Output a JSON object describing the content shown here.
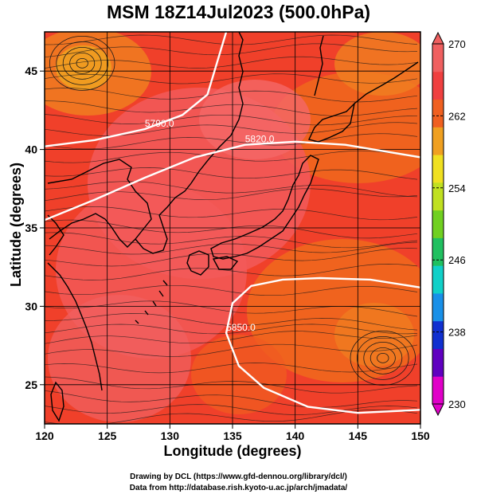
{
  "title": "MSM 18Z14Jul2023 (500.0hPa)",
  "xlabel": "Longitude (degrees)",
  "ylabel": "Latitude  (degrees)",
  "credits": [
    "Drawing by DCL (https://www.gfd-dennou.org/library/dcl/)",
    "Data from http://database.rish.kyoto-u.ac.jp/arch/jmadata/"
  ],
  "map": {
    "lon_range": [
      120,
      150
    ],
    "lat_range": [
      22.5,
      47.5
    ],
    "lon_ticks": [
      120,
      125,
      130,
      135,
      140,
      145,
      150
    ],
    "lat_ticks": [
      25,
      30,
      35,
      40,
      45
    ],
    "lon_tick_labels": [
      "120",
      "125",
      "130",
      "135",
      "140",
      "145",
      "150"
    ],
    "lat_tick_labels": [
      "25",
      "30",
      "35",
      "40",
      "45"
    ],
    "contour_labels": [
      "5790.0",
      "5850.0",
      "5820.0"
    ]
  },
  "colorbar": {
    "range": [
      230,
      270
    ],
    "labels": [
      "270",
      "262",
      "254",
      "246",
      "238",
      "230"
    ],
    "colors": [
      "#e000c8",
      "#6000c0",
      "#1030d0",
      "#1890e8",
      "#10d0c8",
      "#20c060",
      "#70d020",
      "#c0e020",
      "#f0e020",
      "#f0a020",
      "#f06020",
      "#f04040",
      "#f06060"
    ]
  },
  "chart_data": {
    "type": "heatmap",
    "title": "MSM 18Z14Jul2023 (500.0hPa)",
    "xlabel": "Longitude (degrees)",
    "ylabel": "Latitude  (degrees)",
    "xlim": [
      120,
      150
    ],
    "ylim": [
      22.5,
      47.5
    ],
    "variable_range": [
      230,
      270
    ],
    "contours": [
      {
        "label": "5790.0",
        "lon": [
          120,
          124,
          128,
          131,
          133,
          134.5
        ],
        "lat": [
          40.2,
          40.6,
          41.3,
          42.2,
          43.5,
          47.5
        ]
      },
      {
        "label": "5820.0",
        "lon": [
          120,
          124,
          128,
          132,
          136,
          140,
          144,
          147,
          150
        ],
        "lat": [
          35.5,
          36.8,
          38.2,
          39.5,
          40.3,
          40.5,
          40.3,
          39.9,
          39.5
        ]
      },
      {
        "label": "5850.0",
        "lon": [
          150,
          146,
          142,
          139,
          136.5,
          135,
          134.5,
          135.5,
          137.5,
          141,
          145,
          150
        ],
        "lat": [
          31.2,
          31.7,
          31.8,
          31.7,
          31.3,
          30.2,
          28.3,
          26.2,
          24.8,
          23.6,
          23.2,
          23.4
        ]
      }
    ],
    "circulation_centers": [
      {
        "lon": 123,
        "lat": 45.5,
        "sense": "cyclonic"
      },
      {
        "lon": 147,
        "lat": 26.7,
        "sense": "anticyclonic"
      }
    ]
  }
}
